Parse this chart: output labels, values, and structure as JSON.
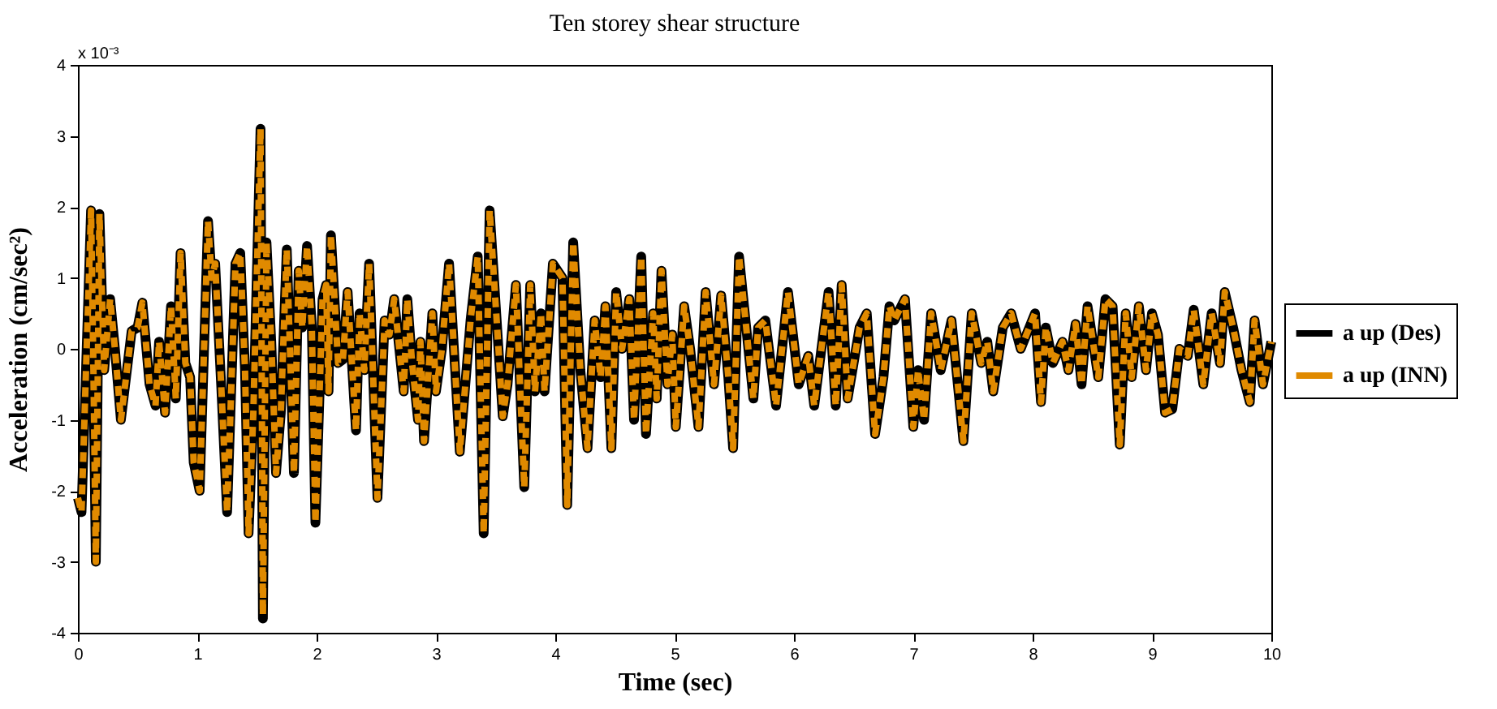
{
  "chart_data": {
    "type": "line",
    "title": "Ten storey shear structure",
    "xlabel": "Time (sec)",
    "ylabel": "Acceleration (cm/sec²)",
    "annotations": [
      "x 10⁻³"
    ],
    "x": [
      0,
      0.03,
      0.11,
      0.13,
      0.15,
      0.18,
      0.22,
      0.27,
      0.31,
      0.36,
      0.45,
      0.5,
      0.54,
      0.6,
      0.65,
      0.68,
      0.73,
      0.78,
      0.82,
      0.86,
      0.9,
      0.94,
      0.97,
      1.02,
      1.09,
      1.12,
      1.15,
      1.2,
      1.25,
      1.32,
      1.36,
      1.4,
      1.43,
      1.47,
      1.53,
      1.55,
      1.58,
      1.62,
      1.66,
      1.7,
      1.75,
      1.81,
      1.85,
      1.88,
      1.92,
      1.96,
      1.99,
      2.05,
      2.08,
      2.1,
      2.12,
      2.18,
      2.22,
      2.26,
      2.33,
      2.36,
      2.4,
      2.44,
      2.51,
      2.57,
      2.61,
      2.65,
      2.73,
      2.76,
      2.8,
      2.85,
      2.87,
      2.9,
      2.97,
      3.0,
      3.05,
      3.11,
      3.2,
      3.29,
      3.35,
      3.4,
      3.45,
      3.56,
      3.6,
      3.67,
      3.74,
      3.79,
      3.83,
      3.88,
      3.91,
      3.98,
      4.06,
      4.1,
      4.15,
      4.21,
      4.27,
      4.33,
      4.38,
      4.42,
      4.47,
      4.51,
      4.56,
      4.62,
      4.66,
      4.72,
      4.76,
      4.82,
      4.85,
      4.89,
      4.94,
      4.98,
      5.01,
      5.08,
      5.13,
      5.2,
      5.26,
      5.33,
      5.39,
      5.45,
      5.49,
      5.54,
      5.6,
      5.66,
      5.7,
      5.76,
      5.85,
      5.95,
      6.04,
      6.12,
      6.17,
      6.29,
      6.35,
      6.4,
      6.45,
      6.55,
      6.61,
      6.68,
      6.75,
      6.8,
      6.84,
      6.93,
      7.0,
      7.04,
      7.09,
      7.15,
      7.23,
      7.32,
      7.42,
      7.49,
      7.57,
      7.62,
      7.67,
      7.75,
      7.82,
      7.9,
      8.02,
      8.07,
      8.11,
      8.17,
      8.25,
      8.3,
      8.36,
      8.41,
      8.46,
      8.55,
      8.61,
      8.67,
      8.73,
      8.78,
      8.83,
      8.89,
      8.95,
      9.0,
      9.05,
      9.11,
      9.17,
      9.23,
      9.3,
      9.35,
      9.43,
      9.5,
      9.57,
      9.61,
      9.68,
      9.75,
      9.82,
      9.86,
      9.93,
      10
    ],
    "series": [
      {
        "name": "a up (Des)",
        "color": "#000000",
        "line_style": "solid",
        "values": [
          -2.1,
          -2.3,
          1.95,
          -0.3,
          -3.0,
          1.9,
          -0.3,
          0.7,
          0,
          -1.0,
          0.25,
          0.3,
          0.65,
          -0.5,
          -0.8,
          0.1,
          -0.9,
          0.6,
          -0.7,
          1.35,
          -0.2,
          -0.4,
          -1.6,
          -2.0,
          1.8,
          1.0,
          1.2,
          -0.5,
          -2.3,
          1.2,
          1.35,
          -0.3,
          -2.6,
          -0.9,
          3.1,
          -3.8,
          1.5,
          0.1,
          -1.75,
          -0.9,
          1.4,
          -1.75,
          1.1,
          0.3,
          1.45,
          0.3,
          -2.45,
          0.7,
          0.9,
          -0.6,
          1.6,
          -0.2,
          -0.15,
          0.8,
          -1.15,
          0.5,
          -0.3,
          1.2,
          -2.1,
          0.4,
          0.2,
          0.7,
          -0.6,
          0.7,
          -0.2,
          -1.0,
          0.1,
          -1.3,
          0.5,
          -0.6,
          0,
          1.2,
          -1.45,
          0.4,
          1.3,
          -2.6,
          1.95,
          -0.95,
          -0.5,
          0.9,
          -1.95,
          0.9,
          -0.6,
          0.5,
          -0.6,
          1.2,
          1.0,
          -2.2,
          1.5,
          -0.3,
          -1.4,
          0.4,
          -0.4,
          0.6,
          -1.4,
          0.8,
          0,
          0.7,
          -1.0,
          1.3,
          -1.2,
          0.5,
          -0.7,
          1.1,
          -0.5,
          0.2,
          -1.1,
          0.6,
          0,
          -1.1,
          0.8,
          -0.5,
          0.75,
          -0.4,
          -1.4,
          1.3,
          0.3,
          -0.7,
          0.3,
          0.4,
          -0.8,
          0.8,
          -0.5,
          -0.1,
          -0.8,
          0.8,
          -0.8,
          0.9,
          -0.7,
          0.3,
          0.5,
          -1.2,
          -0.4,
          0.6,
          0.4,
          0.7,
          -1.1,
          -0.3,
          -1.0,
          0.5,
          -0.3,
          0.4,
          -1.3,
          0.5,
          -0.2,
          0.1,
          -0.6,
          0.3,
          0.5,
          0,
          0.5,
          -0.75,
          0.3,
          -0.2,
          0.1,
          -0.3,
          0.35,
          -0.5,
          0.6,
          -0.4,
          0.7,
          0.6,
          -1.35,
          0.5,
          -0.4,
          0.6,
          -0.3,
          0.5,
          0.2,
          -0.9,
          -0.85,
          0,
          -0.1,
          0.55,
          -0.5,
          0.5,
          -0.2,
          0.8,
          0.3,
          -0.3,
          -0.75,
          0.4,
          -0.5,
          0.1
        ]
      },
      {
        "name": "a up (INN)",
        "color": "#e08a00",
        "line_style": "dashed",
        "values": [
          -2.1,
          -2.3,
          1.95,
          -0.3,
          -3.0,
          1.9,
          -0.3,
          0.7,
          0,
          -1.0,
          0.25,
          0.3,
          0.65,
          -0.5,
          -0.8,
          0.1,
          -0.9,
          0.6,
          -0.7,
          1.35,
          -0.2,
          -0.4,
          -1.6,
          -2.0,
          1.8,
          1.0,
          1.2,
          -0.5,
          -2.3,
          1.2,
          1.35,
          -0.3,
          -2.6,
          -0.9,
          3.1,
          -3.75,
          1.5,
          0.1,
          -1.75,
          -0.9,
          1.4,
          -1.75,
          1.1,
          0.3,
          1.45,
          0.3,
          -2.45,
          0.7,
          0.9,
          -0.6,
          1.6,
          -0.2,
          -0.15,
          0.8,
          -1.15,
          0.5,
          -0.3,
          1.2,
          -2.1,
          0.4,
          0.2,
          0.7,
          -0.6,
          0.7,
          -0.2,
          -1.0,
          0.1,
          -1.3,
          0.5,
          -0.6,
          0,
          1.2,
          -1.45,
          0.4,
          1.3,
          -2.6,
          1.95,
          -0.95,
          -0.5,
          0.9,
          -1.95,
          0.9,
          -0.6,
          0.5,
          -0.6,
          1.2,
          1.0,
          -2.2,
          1.5,
          -0.3,
          -1.4,
          0.4,
          -0.4,
          0.6,
          -1.4,
          0.8,
          0,
          0.7,
          -1.0,
          1.3,
          -1.2,
          0.5,
          -0.7,
          1.1,
          -0.5,
          0.2,
          -1.1,
          0.6,
          0,
          -1.1,
          0.8,
          -0.5,
          0.75,
          -0.4,
          -1.4,
          1.3,
          0.3,
          -0.7,
          0.3,
          0.4,
          -0.8,
          0.8,
          -0.5,
          -0.1,
          -0.8,
          0.8,
          -0.8,
          0.9,
          -0.7,
          0.3,
          0.5,
          -1.2,
          -0.4,
          0.6,
          0.4,
          0.7,
          -1.1,
          -0.3,
          -1.0,
          0.5,
          -0.3,
          0.4,
          -1.3,
          0.5,
          -0.2,
          0.1,
          -0.6,
          0.3,
          0.5,
          0,
          0.5,
          -0.75,
          0.3,
          -0.2,
          0.1,
          -0.3,
          0.35,
          -0.5,
          0.6,
          -0.4,
          0.7,
          0.6,
          -1.35,
          0.5,
          -0.4,
          0.6,
          -0.3,
          0.5,
          0.2,
          -0.9,
          -0.85,
          0,
          -0.1,
          0.55,
          -0.5,
          0.5,
          -0.2,
          0.8,
          0.3,
          -0.3,
          -0.75,
          0.4,
          -0.5,
          0.1
        ]
      }
    ],
    "xlim": [
      0,
      10
    ],
    "xticks": [
      0,
      1,
      2,
      3,
      4,
      5,
      6,
      7,
      8,
      9,
      10
    ],
    "ylim": [
      -4,
      4
    ],
    "yticks": [
      -4,
      -3,
      -2,
      -1,
      0,
      1,
      2,
      3,
      4
    ],
    "grid": false,
    "legend": "right",
    "marker": "none"
  }
}
